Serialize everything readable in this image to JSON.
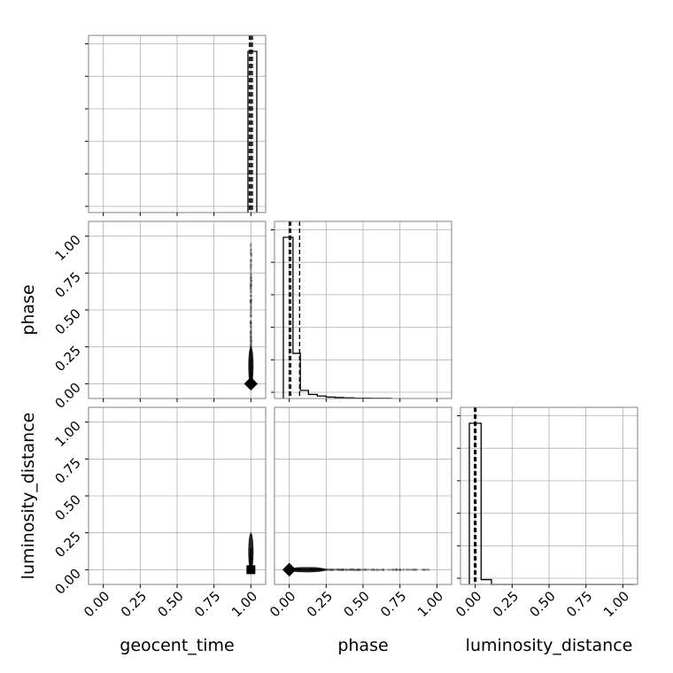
{
  "chart_data": {
    "type": "corner",
    "parameters": [
      "geocent_time",
      "phase",
      "luminosity_distance"
    ],
    "axis_labels": {
      "x": [
        "geocent_time",
        "phase",
        "luminosity_distance"
      ],
      "y": [
        "",
        "phase",
        "luminosity_distance"
      ]
    },
    "tick_values": [
      0.0,
      0.25,
      0.5,
      0.75,
      1.0
    ],
    "tick_labels": [
      "0.00",
      "0.25",
      "0.50",
      "0.75",
      "1.00"
    ],
    "xlim": [
      -0.1,
      1.1
    ],
    "ylim": [
      -0.1,
      1.1
    ],
    "grid": true,
    "histograms": [
      {
        "parameter": "geocent_time",
        "bin_edges": [
          0.98,
          1.04
        ],
        "density": [
          1.0
        ],
        "quantiles": [
          0.99,
          1.0,
          1.01
        ]
      },
      {
        "parameter": "phase",
        "bin_edges": [
          -0.04,
          0.025,
          0.075,
          0.13,
          0.19,
          0.25,
          0.31,
          0.37,
          0.44,
          0.5,
          0.56,
          0.62,
          0.69
        ],
        "density": [
          1.0,
          0.28,
          0.05,
          0.025,
          0.015,
          0.009,
          0.006,
          0.004,
          0.002,
          0.002,
          0.001,
          0.001
        ],
        "quantiles": [
          0.0,
          0.01,
          0.07
        ]
      },
      {
        "parameter": "luminosity_distance",
        "bin_edges": [
          -0.04,
          0.04,
          0.11,
          1.08
        ],
        "density": [
          1.0,
          0.03,
          0.0
        ],
        "quantiles": [
          -0.005,
          0.0,
          0.005
        ]
      }
    ],
    "scatter_panels": [
      {
        "x": "geocent_time",
        "y": "phase",
        "spread": "vertical",
        "x_value": 1.0,
        "y_range": [
          0.0,
          0.95
        ],
        "core": [
          1.0,
          0.0
        ],
        "marker": "diamond"
      },
      {
        "x": "geocent_time",
        "y": "luminosity_distance",
        "spread": "vertical",
        "x_value": 1.0,
        "y_range": [
          0.0,
          0.14
        ],
        "core": [
          1.0,
          0.0
        ],
        "marker": "square"
      },
      {
        "x": "phase",
        "y": "luminosity_distance",
        "spread": "horizontal",
        "y_value": 0.0,
        "x_range": [
          0.0,
          0.95
        ],
        "core": [
          0.0,
          0.0
        ],
        "marker": "diamond"
      }
    ]
  }
}
